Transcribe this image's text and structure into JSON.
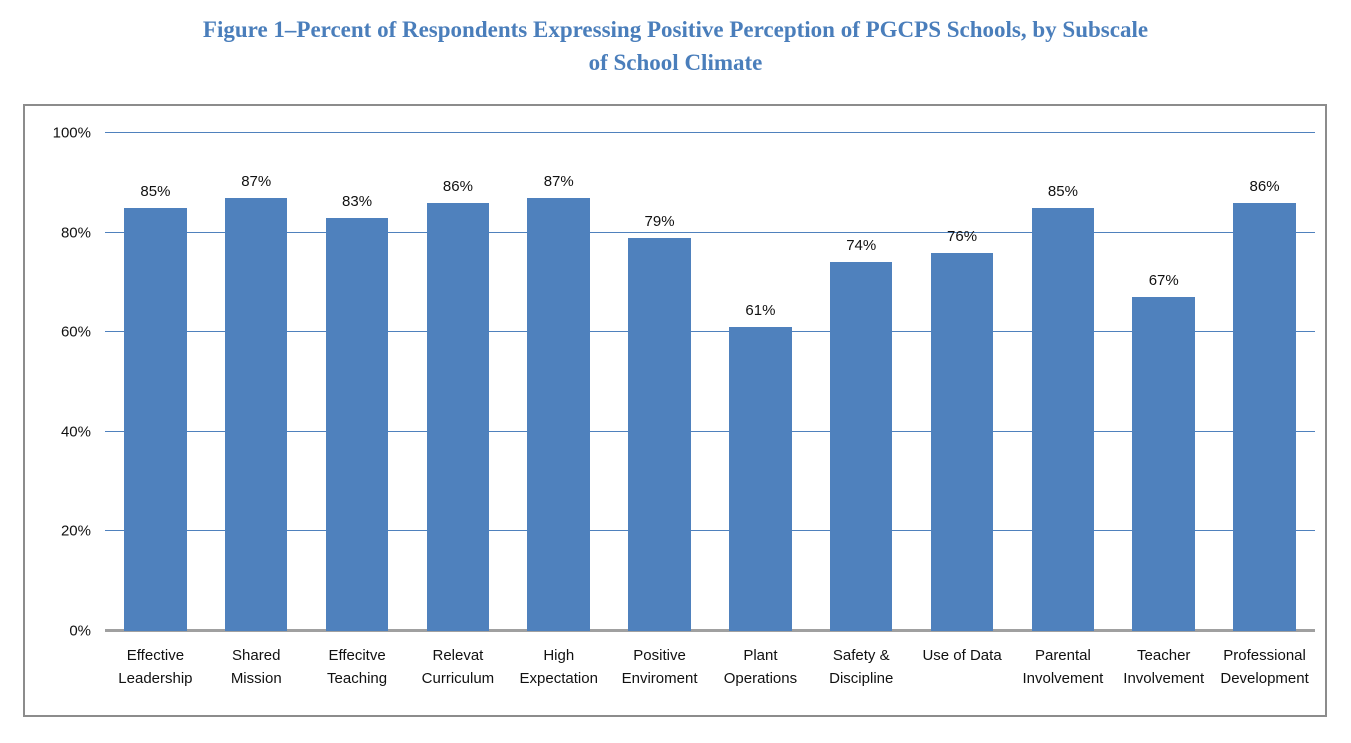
{
  "chart_data": {
    "type": "bar",
    "title": "Figure 1–Percent of Respondents Expressing Positive Perception of PGCPS Schools, by Subscale of School Climate",
    "title_lines": [
      "Figure 1–Percent of Respondents Expressing Positive Perception of PGCPS Schools, by Subscale",
      "of School Climate"
    ],
    "categories": [
      "Effective Leadership",
      "Shared Mission",
      "Effecitve Teaching",
      "Relevat Curriculum",
      "High Expectation",
      "Positive Enviroment",
      "Plant Operations",
      "Safety & Discipline",
      "Use of Data",
      "Parental Involvement",
      "Teacher Involvement",
      "Professional Development"
    ],
    "category_lines": [
      [
        "Effective",
        "Leadership"
      ],
      [
        "Shared",
        "Mission"
      ],
      [
        "Effecitve",
        "Teaching"
      ],
      [
        "Relevat",
        "Curriculum"
      ],
      [
        "High",
        "Expectation"
      ],
      [
        "Positive",
        "Enviroment"
      ],
      [
        "Plant",
        "Operations"
      ],
      [
        "Safety &",
        "Discipline"
      ],
      [
        "Use of Data"
      ],
      [
        "Parental",
        "Involvement"
      ],
      [
        "Teacher",
        "Involvement"
      ],
      [
        "Professional",
        "Development"
      ]
    ],
    "values": [
      85,
      87,
      83,
      86,
      87,
      79,
      61,
      74,
      76,
      85,
      67,
      86
    ],
    "value_labels": [
      "85%",
      "87%",
      "83%",
      "86%",
      "87%",
      "79%",
      "61%",
      "74%",
      "76%",
      "85%",
      "67%",
      "86%"
    ],
    "xlabel": "",
    "ylabel": "",
    "ylim": [
      0,
      100
    ],
    "yticks": [
      0,
      20,
      40,
      60,
      80,
      100
    ],
    "ytick_labels": [
      "0%",
      "20%",
      "40%",
      "60%",
      "80%",
      "100%"
    ],
    "grid": true,
    "legend": false,
    "colors": {
      "bar": "#4F81BD",
      "gridline": "#4F81BD",
      "axis_line": "#A0A0A0",
      "frame_border": "#8C8C8C",
      "title": "#4A7EBB",
      "text": "#111111"
    }
  }
}
